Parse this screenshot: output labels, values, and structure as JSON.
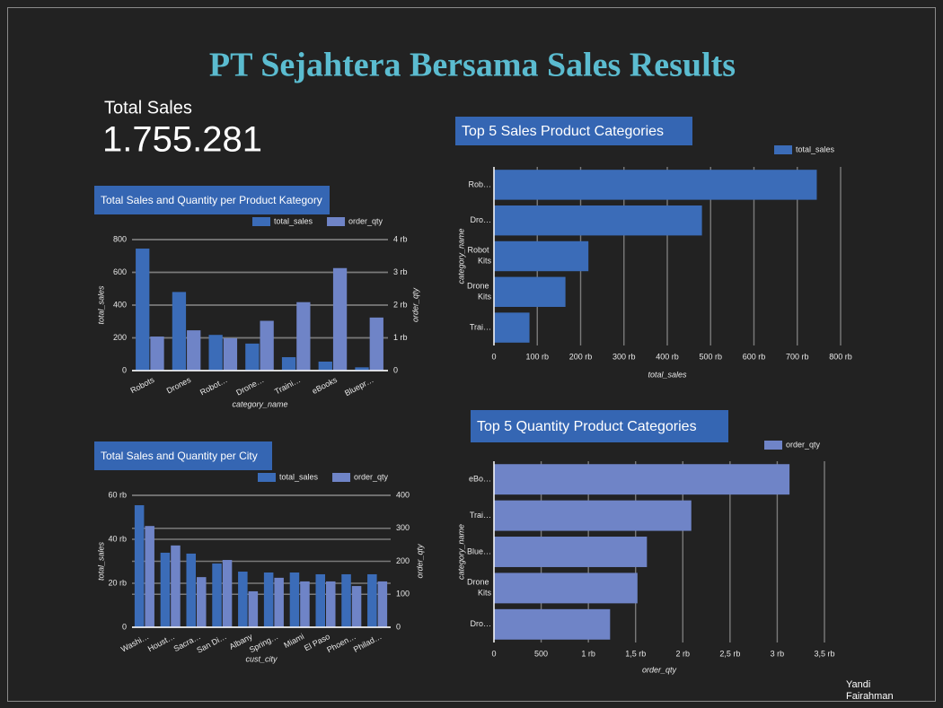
{
  "header": {
    "title": "PT Sejahtera Bersama Sales Results"
  },
  "kpi": {
    "label": "Total Sales",
    "value": "1.755.281"
  },
  "footer": "Yandi Fairahman",
  "chart_data": [
    {
      "type": "bar",
      "title": "Total Sales and Quantity per Product Kategory",
      "categories": [
        "Robots",
        "Drones",
        "Robot…",
        "Drone…",
        "Traini…",
        "eBooks",
        "Bluepr…"
      ],
      "series": [
        {
          "name": "total_sales",
          "color": "#3b6cb8",
          "values": [
            745,
            480,
            218,
            165,
            82,
            55,
            20
          ]
        },
        {
          "name": "order_qty",
          "color": "#6f84c7",
          "axis": "y2",
          "values": [
            1040,
            1230,
            990,
            1520,
            2090,
            3130,
            1620
          ]
        }
      ],
      "x_label": "category_name",
      "y_label": "total_sales",
      "y2_label": "order_qty",
      "ylim": [
        0,
        800
      ],
      "yticks": [
        0,
        200,
        400,
        600,
        800
      ],
      "y2lim": [
        0,
        4000
      ],
      "y2ticks": [
        0,
        {
          "value": 1000,
          "label": "1 rb"
        },
        {
          "value": 2000,
          "label": "2 rb"
        },
        {
          "value": 3000,
          "label": "3 rb"
        },
        {
          "value": 4000,
          "label": "4 rb"
        }
      ],
      "grid": true
    },
    {
      "type": "bar",
      "title": "Total Sales and Quantity per City",
      "categories": [
        "Washi…",
        "Houst…",
        "Sacra…",
        "San Di…",
        "Albany",
        "Spring…",
        "Miami",
        "El Paso",
        "Phoen…",
        "Philad…"
      ],
      "series": [
        {
          "name": "total_sales",
          "color": "#3b6cb8",
          "values": [
            55500,
            33900,
            33500,
            29000,
            25300,
            24900,
            24900,
            24100,
            24100,
            24100
          ]
        },
        {
          "name": "order_qty",
          "color": "#6f84c7",
          "axis": "y2",
          "values": [
            307,
            248,
            152,
            204,
            109,
            150,
            139,
            139,
            125,
            139
          ]
        }
      ],
      "x_label": "cust_city",
      "y_label": "total_sales",
      "y2_label": "order_qty",
      "ylim": [
        0,
        60000
      ],
      "yticks": [
        0,
        {
          "value": 20000,
          "label": "20 rb"
        },
        {
          "value": 40000,
          "label": "40 rb"
        },
        {
          "value": 60000,
          "label": "60 rb"
        }
      ],
      "y2lim": [
        0,
        400
      ],
      "y2ticks": [
        0,
        100,
        200,
        300,
        400
      ],
      "grid": true
    },
    {
      "type": "bar",
      "orientation": "horizontal",
      "title": "Top 5 Sales Product Categories",
      "categories": [
        "Rob…",
        "Dro…",
        "Robot Kits",
        "Drone Kits",
        "Trai…"
      ],
      "series": [
        {
          "name": "total_sales",
          "color": "#3b6cb8",
          "values": [
            745000,
            480000,
            218000,
            165000,
            82000
          ]
        }
      ],
      "x_label": "total_sales",
      "y_label": "category_name",
      "xlim": [
        0,
        800000
      ],
      "xticks": [
        0,
        {
          "value": 100000,
          "label": "100 rb"
        },
        {
          "value": 200000,
          "label": "200 rb"
        },
        {
          "value": 300000,
          "label": "300 rb"
        },
        {
          "value": 400000,
          "label": "400 rb"
        },
        {
          "value": 500000,
          "label": "500 rb"
        },
        {
          "value": 600000,
          "label": "600 rb"
        },
        {
          "value": 700000,
          "label": "700 rb"
        },
        {
          "value": 800000,
          "label": "800 rb"
        }
      ],
      "grid": true
    },
    {
      "type": "bar",
      "orientation": "horizontal",
      "title": "Top 5 Quantity Product Categories",
      "categories": [
        "eBo…",
        "Trai…",
        "Blue…",
        "Drone Kits",
        "Dro…"
      ],
      "series": [
        {
          "name": "order_qty",
          "color": "#6f84c7",
          "values": [
            3130,
            2090,
            1620,
            1520,
            1230
          ]
        }
      ],
      "x_label": "order_qty",
      "y_label": "category_name",
      "xlim": [
        0,
        3500
      ],
      "xticks": [
        0,
        500,
        {
          "value": 1000,
          "label": "1 rb"
        },
        {
          "value": 1500,
          "label": "1,5 rb"
        },
        {
          "value": 2000,
          "label": "2 rb"
        },
        {
          "value": 2500,
          "label": "2,5 rb"
        },
        {
          "value": 3000,
          "label": "3 rb"
        },
        {
          "value": 3500,
          "label": "3,5 rb"
        }
      ],
      "grid": true
    }
  ]
}
